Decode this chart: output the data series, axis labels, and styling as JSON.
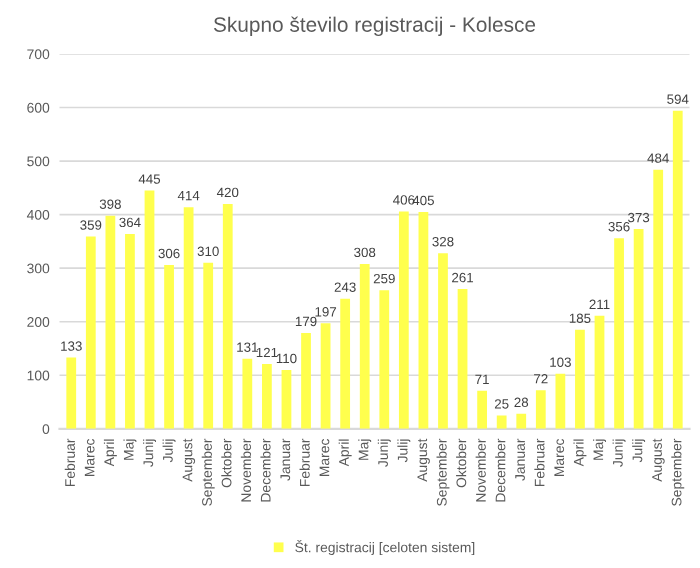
{
  "chart_data": {
    "type": "bar",
    "title": "Skupno število registracij - Kolesce",
    "categories": [
      "Februar",
      "Marec",
      "April",
      "Maj",
      "Junij",
      "Julij",
      "August",
      "September",
      "Oktober",
      "November",
      "December",
      "Januar",
      "Februar",
      "Marec",
      "April",
      "Maj",
      "Junij",
      "Julij",
      "August",
      "September",
      "Oktober",
      "November",
      "December",
      "Januar",
      "Februar",
      "Marec",
      "April",
      "Maj",
      "Junij",
      "Julij",
      "August",
      "September"
    ],
    "series": [
      {
        "name": "Št. registracij [celoten sistem]",
        "color": "#ffff4d",
        "values": [
          133,
          359,
          398,
          364,
          445,
          306,
          414,
          310,
          420,
          131,
          121,
          110,
          179,
          197,
          243,
          308,
          259,
          406,
          405,
          328,
          261,
          71,
          25,
          28,
          72,
          103,
          185,
          211,
          356,
          373,
          484,
          594
        ]
      }
    ],
    "ylim": [
      0,
      700
    ],
    "yticks": [
      0,
      100,
      200,
      300,
      400,
      500,
      600,
      700
    ],
    "grid": "y",
    "legend": "bottom",
    "data_labels": true
  }
}
